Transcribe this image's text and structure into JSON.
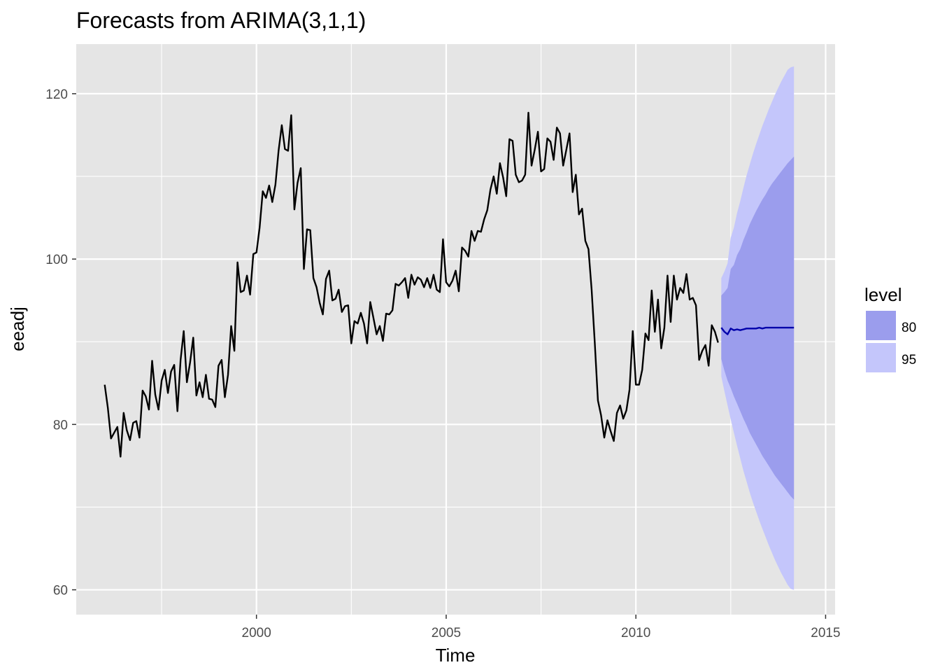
{
  "chart_data": {
    "type": "line",
    "title": "Forecasts from ARIMA(3,1,1)",
    "xlabel": "Time",
    "ylabel": "eeadj",
    "xlim": [
      1995.25,
      2015.25
    ],
    "ylim": [
      57,
      126
    ],
    "x_ticks": [
      2000,
      2005,
      2010,
      2015
    ],
    "x_tick_labels": [
      "2000",
      "2005",
      "2010",
      "2015"
    ],
    "y_ticks": [
      60,
      80,
      100,
      120
    ],
    "y_tick_labels": [
      "60",
      "80",
      "100",
      "120"
    ],
    "grid": true,
    "legend": {
      "title": "level",
      "position": "right",
      "entries": [
        {
          "label": "80",
          "color": "#9b9ded"
        },
        {
          "label": "95",
          "color": "#c4c6fb"
        }
      ]
    },
    "colors": {
      "panel_background": "#e5e5e5",
      "grid_major": "#ffffff",
      "series_line": "#000000",
      "forecast_line": "#0000aa",
      "band_80": "#9b9ded",
      "band_95": "#c4c6fb"
    },
    "series": [
      {
        "role": "observed",
        "x": [
          1996.0,
          1996.083,
          1996.167,
          1996.25,
          1996.333,
          1996.417,
          1996.5,
          1996.583,
          1996.667,
          1996.75,
          1996.833,
          1996.917,
          1997.0,
          1997.083,
          1997.167,
          1997.25,
          1997.333,
          1997.417,
          1997.5,
          1997.583,
          1997.667,
          1997.75,
          1997.833,
          1997.917,
          1998.0,
          1998.083,
          1998.167,
          1998.25,
          1998.333,
          1998.417,
          1998.5,
          1998.583,
          1998.667,
          1998.75,
          1998.833,
          1998.917,
          1999.0,
          1999.083,
          1999.167,
          1999.25,
          1999.333,
          1999.417,
          1999.5,
          1999.583,
          1999.667,
          1999.75,
          1999.833,
          1999.917,
          2000.0,
          2000.083,
          2000.167,
          2000.25,
          2000.333,
          2000.417,
          2000.5,
          2000.583,
          2000.667,
          2000.75,
          2000.833,
          2000.917,
          2001.0,
          2001.083,
          2001.167,
          2001.25,
          2001.333,
          2001.417,
          2001.5,
          2001.583,
          2001.667,
          2001.75,
          2001.833,
          2001.917,
          2002.0,
          2002.083,
          2002.167,
          2002.25,
          2002.333,
          2002.417,
          2002.5,
          2002.583,
          2002.667,
          2002.75,
          2002.833,
          2002.917,
          2003.0,
          2003.083,
          2003.167,
          2003.25,
          2003.333,
          2003.417,
          2003.5,
          2003.583,
          2003.667,
          2003.75,
          2003.833,
          2003.917,
          2004.0,
          2004.083,
          2004.167,
          2004.25,
          2004.333,
          2004.417,
          2004.5,
          2004.583,
          2004.667,
          2004.75,
          2004.833,
          2004.917,
          2005.0,
          2005.083,
          2005.167,
          2005.25,
          2005.333,
          2005.417,
          2005.5,
          2005.583,
          2005.667,
          2005.75,
          2005.833,
          2005.917,
          2006.0,
          2006.083,
          2006.167,
          2006.25,
          2006.333,
          2006.417,
          2006.5,
          2006.583,
          2006.667,
          2006.75,
          2006.833,
          2006.917,
          2007.0,
          2007.083,
          2007.167,
          2007.25,
          2007.333,
          2007.417,
          2007.5,
          2007.583,
          2007.667,
          2007.75,
          2007.833,
          2007.917,
          2008.0,
          2008.083,
          2008.167,
          2008.25,
          2008.333,
          2008.417,
          2008.5,
          2008.583,
          2008.667,
          2008.75,
          2008.833,
          2008.917,
          2009.0,
          2009.083,
          2009.167,
          2009.25,
          2009.333,
          2009.417,
          2009.5,
          2009.583,
          2009.667,
          2009.75,
          2009.833,
          2009.917,
          2010.0,
          2010.083,
          2010.167,
          2010.25,
          2010.333,
          2010.417,
          2010.5,
          2010.583,
          2010.667,
          2010.75,
          2010.833,
          2010.917,
          2011.0,
          2011.083,
          2011.167,
          2011.25,
          2011.333,
          2011.417,
          2011.5,
          2011.583,
          2011.667,
          2011.75,
          2011.833,
          2011.917,
          2012.0,
          2012.083,
          2012.167
        ],
        "y": [
          84.8,
          82.0,
          78.3,
          79.0,
          79.7,
          76.1,
          81.4,
          79.3,
          78.1,
          80.2,
          80.4,
          78.4,
          84.1,
          83.4,
          81.8,
          87.7,
          83.6,
          81.8,
          85.3,
          86.6,
          83.8,
          86.4,
          87.2,
          81.6,
          87.8,
          91.3,
          85.1,
          87.5,
          90.5,
          83.5,
          85.1,
          83.3,
          86.0,
          83.1,
          83.0,
          82.1,
          87.1,
          87.8,
          83.3,
          86.0,
          91.9,
          88.9,
          99.6,
          96.0,
          96.2,
          98.0,
          95.7,
          100.6,
          100.8,
          103.8,
          108.2,
          107.4,
          108.9,
          106.9,
          109.0,
          113.1,
          116.2,
          113.3,
          113.1,
          117.4,
          106.0,
          109.2,
          111.0,
          98.8,
          103.6,
          103.5,
          97.7,
          96.6,
          94.7,
          93.3,
          97.6,
          98.6,
          95.0,
          95.2,
          96.3,
          93.6,
          94.3,
          94.4,
          89.8,
          92.5,
          92.2,
          93.5,
          92.2,
          89.8,
          94.8,
          92.9,
          90.9,
          91.9,
          90.1,
          93.4,
          93.3,
          93.8,
          97.0,
          96.8,
          97.2,
          97.7,
          95.3,
          98.1,
          96.9,
          97.8,
          97.5,
          96.6,
          97.7,
          96.5,
          98.1,
          96.3,
          96.0,
          102.4,
          97.2,
          96.7,
          97.4,
          98.6,
          96.1,
          101.4,
          101.0,
          100.3,
          103.4,
          102.2,
          103.4,
          103.3,
          104.8,
          105.9,
          108.4,
          110.0,
          107.9,
          111.6,
          109.9,
          107.6,
          114.5,
          114.3,
          110.2,
          109.3,
          109.5,
          110.2,
          117.7,
          111.3,
          113.2,
          115.4,
          110.6,
          110.9,
          114.6,
          114.2,
          112.0,
          115.9,
          115.2,
          111.3,
          113.2,
          115.2,
          108.1,
          110.2,
          105.4,
          106.1,
          102.2,
          101.2,
          96.3,
          89.9,
          82.9,
          81.1,
          78.4,
          80.5,
          79.2,
          78.0,
          81.4,
          82.3,
          80.7,
          81.7,
          84.2,
          91.3,
          84.8,
          84.8,
          86.6,
          91.0,
          90.2,
          96.2,
          91.2,
          95.1,
          89.2,
          91.7,
          98.0,
          92.4,
          98.0,
          95.1,
          96.5,
          95.9,
          98.2,
          95.1,
          95.3,
          94.4,
          87.8,
          88.9,
          89.6,
          87.1,
          92.0,
          91.2,
          89.9
        ]
      },
      {
        "role": "forecast",
        "x": [
          2012.25,
          2012.333,
          2012.417,
          2012.5,
          2012.583,
          2012.667,
          2012.75,
          2012.833,
          2012.917,
          2013.0,
          2013.083,
          2013.167,
          2013.25,
          2013.333,
          2013.417,
          2013.5,
          2013.583,
          2013.667,
          2013.75,
          2013.833,
          2013.917,
          2014.0,
          2014.083,
          2014.167
        ],
        "y": [
          91.7,
          91.2,
          90.9,
          91.6,
          91.4,
          91.5,
          91.4,
          91.5,
          91.6,
          91.6,
          91.6,
          91.6,
          91.7,
          91.6,
          91.7,
          91.7,
          91.7,
          91.7,
          91.7,
          91.7,
          91.7,
          91.7,
          91.7,
          91.7
        ],
        "lo80": [
          87.9,
          86.5,
          85.3,
          84.4,
          83.4,
          82.5,
          81.6,
          80.7,
          79.9,
          79.0,
          78.3,
          77.6,
          76.9,
          76.2,
          75.6,
          75.0,
          74.4,
          73.8,
          73.3,
          72.8,
          72.3,
          71.8,
          71.3,
          70.9
        ],
        "hi80": [
          95.6,
          96.0,
          96.5,
          98.8,
          99.3,
          100.5,
          101.2,
          102.3,
          103.2,
          104.2,
          105.0,
          105.8,
          106.5,
          107.2,
          107.8,
          108.5,
          109.1,
          109.6,
          110.1,
          110.6,
          111.1,
          111.6,
          112.0,
          112.4
        ],
        "lo95": [
          85.8,
          84.0,
          82.3,
          80.6,
          79.0,
          77.4,
          75.9,
          74.4,
          73.1,
          71.8,
          70.6,
          69.5,
          68.4,
          67.4,
          66.4,
          65.4,
          64.5,
          63.6,
          62.8,
          62.0,
          61.3,
          60.6,
          60.1,
          60.0
        ],
        "hi95": [
          97.7,
          98.5,
          99.5,
          102.6,
          103.8,
          105.6,
          107.0,
          108.6,
          110.1,
          111.4,
          112.7,
          113.9,
          115.0,
          116.1,
          117.1,
          118.1,
          119.0,
          119.9,
          120.7,
          121.5,
          122.2,
          122.9,
          123.2,
          123.3
        ]
      }
    ]
  }
}
